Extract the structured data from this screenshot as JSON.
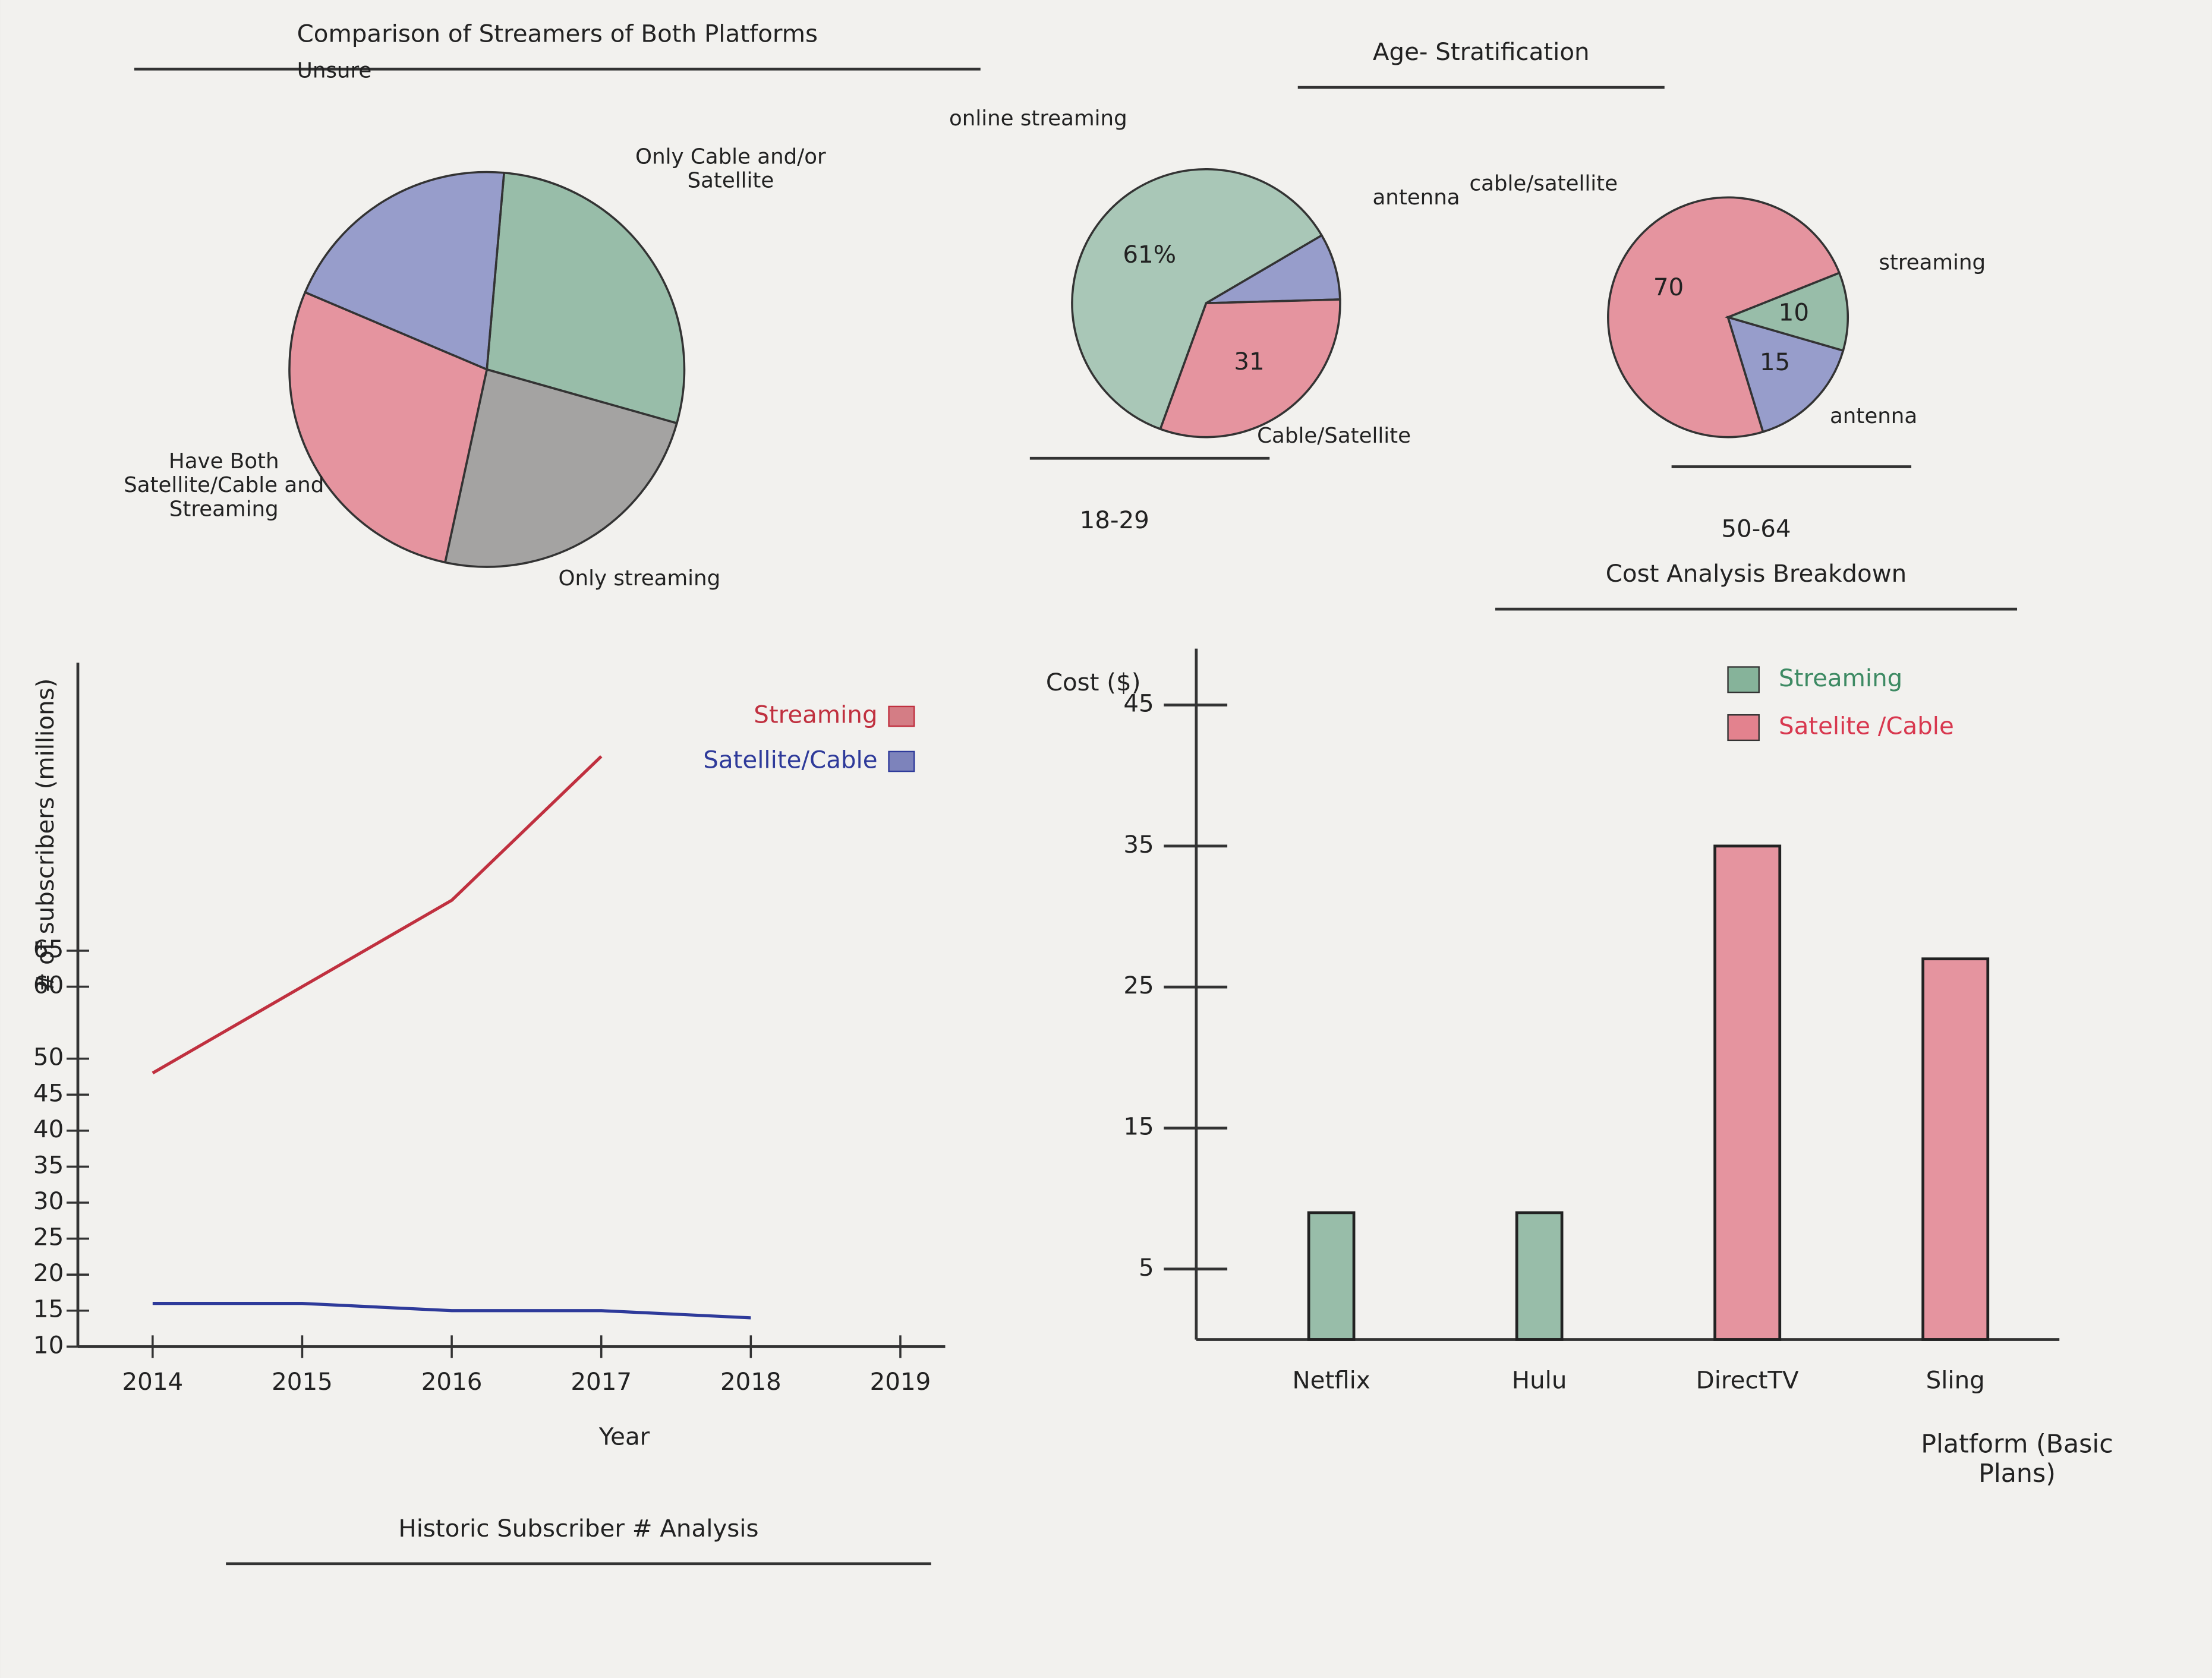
{
  "chart_data": [
    {
      "type": "pie",
      "title": "Comparison of Streamers of Both Platforms",
      "categories": [
        "Only Cable and/or Satellite",
        "Only streaming",
        "Have Both Satellite/Cable and Streaming",
        "Unsure"
      ],
      "values": [
        28,
        24,
        28,
        20
      ],
      "colors": [
        "#3d8a63",
        "#555555",
        "#d8384f",
        "#3b4aa8"
      ],
      "data_labels": false
    },
    {
      "type": "pie",
      "title": "Age- Stratification",
      "subtitle": "18-29",
      "categories": [
        "online streaming",
        "antenna",
        "Cable/Satellite"
      ],
      "values": [
        61,
        8,
        31
      ],
      "value_labels": [
        "61%",
        null,
        "31"
      ],
      "colors": [
        "#5f9e80",
        "#3b4aa8",
        "#d8384f"
      ],
      "data_labels": true
    },
    {
      "type": "pie",
      "subtitle": "50-64",
      "categories": [
        "cable/satellite",
        "streaming",
        "antenna"
      ],
      "values": [
        70,
        10,
        15
      ],
      "colors": [
        "#d8384f",
        "#3d8a63",
        "#3b4aa8"
      ],
      "data_labels": true
    },
    {
      "type": "line",
      "title": "Historic Subscriber # Analysis",
      "x_label": "Year",
      "y_label": "# of subscribers (millions)",
      "x": [
        2014,
        2015,
        2016,
        2017,
        2018
      ],
      "series": [
        {
          "name": "Streaming",
          "color": "#c0303f",
          "values": [
            48,
            60,
            72,
            92,
            null
          ]
        },
        {
          "name": "Satellite/Cable",
          "color": "#2e3a9a",
          "values": [
            16,
            16,
            15,
            15,
            14
          ]
        }
      ],
      "xlim": [
        2013.5,
        2019.3
      ],
      "xticks": [
        2014,
        2015,
        2016,
        2017,
        2018,
        2019
      ],
      "ylim": [
        10,
        105
      ],
      "yticks": [
        10,
        15,
        20,
        25,
        30,
        35,
        40,
        45,
        50,
        60,
        65
      ],
      "legend": "upper right"
    },
    {
      "type": "bar",
      "title": "Cost Analysis Breakdown",
      "x_label": "Platform (Basic Plans)",
      "y_label": "Cost ($)",
      "categories": [
        "Netflix",
        "Hulu",
        "DirectTV",
        "Sling"
      ],
      "series": [
        {
          "name": "Streaming",
          "color": "#3d8a63",
          "values": [
            9,
            9,
            null,
            null
          ]
        },
        {
          "name": "Satelite /Cable",
          "color": "#d8384f",
          "values": [
            null,
            null,
            35,
            27
          ]
        }
      ],
      "ylim": [
        0,
        48
      ],
      "yticks": [
        5,
        15,
        25,
        35,
        45
      ],
      "legend": "upper right"
    }
  ]
}
